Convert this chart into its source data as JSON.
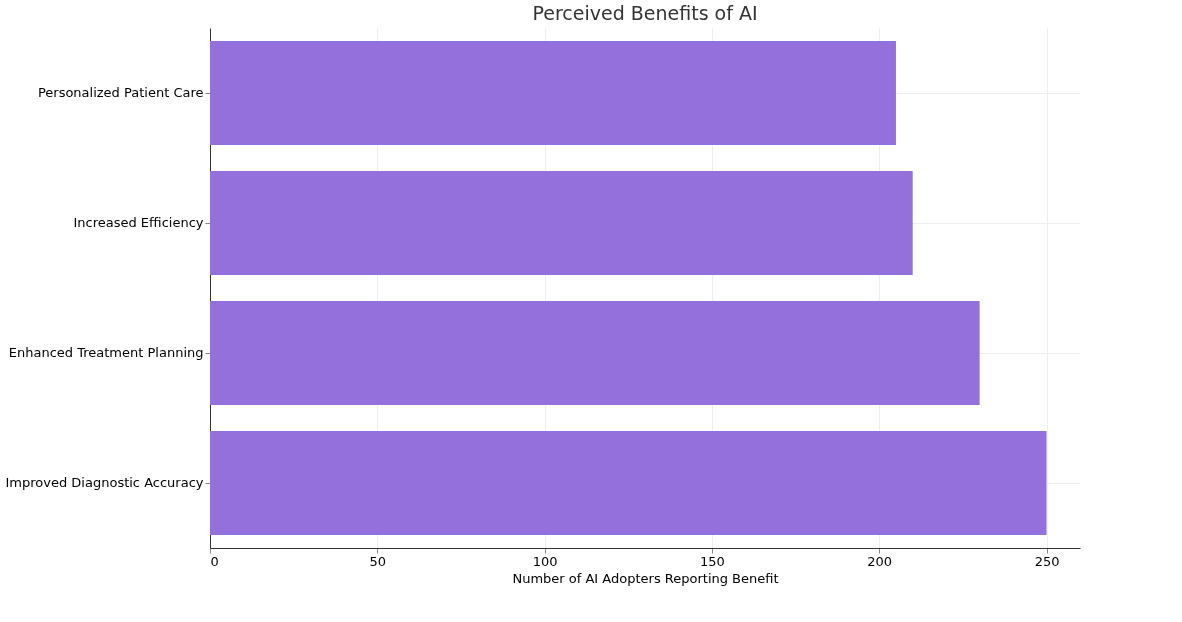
{
  "chart_data": {
    "type": "bar",
    "orientation": "horizontal",
    "title": "Perceived Benefits of AI",
    "xlabel": "Number of AI Adopters Reporting Benefit",
    "categories": [
      "Personalized Patient Care",
      "Increased Efficiency",
      "Enhanced Treatment Planning",
      "Improved Diagnostic Accuracy"
    ],
    "values": [
      205,
      210,
      230,
      250
    ],
    "color": "#9370db",
    "xlim": [
      0,
      260
    ],
    "xticks": [
      0,
      50,
      100,
      150,
      200,
      250
    ],
    "grid": true
  }
}
